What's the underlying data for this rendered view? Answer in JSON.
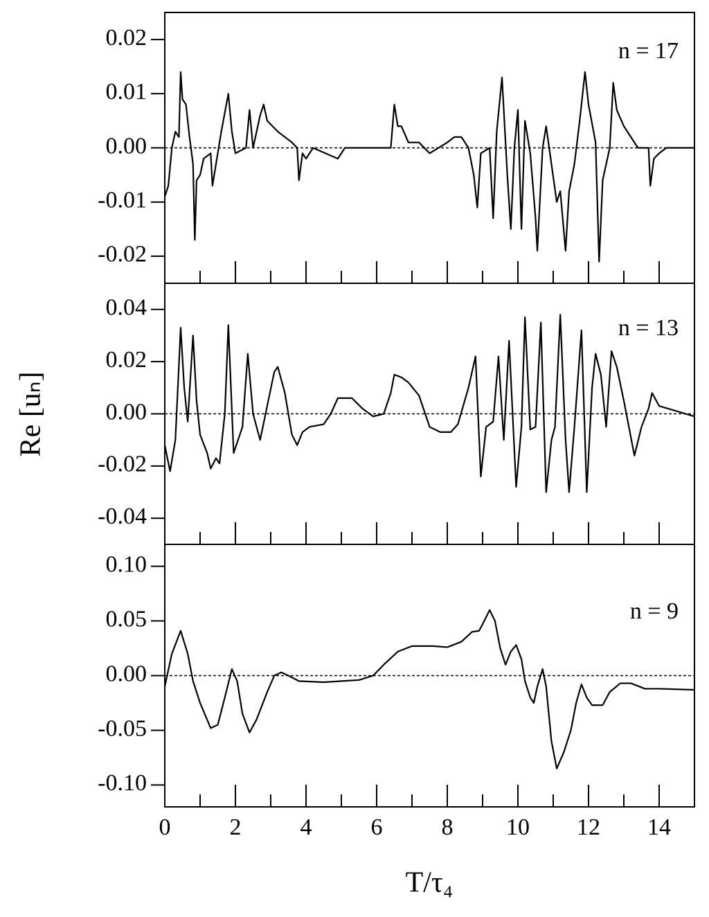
{
  "chart_data": [
    {
      "type": "line",
      "annotation": "n = 17",
      "xlim": [
        0,
        15
      ],
      "ylim": [
        -0.025,
        0.025
      ],
      "hline": 0,
      "yticks": [
        {
          "value": 0.02,
          "label": "0.02"
        },
        {
          "value": 0.01,
          "label": "0.01"
        },
        {
          "value": 0,
          "label": "0.00"
        },
        {
          "value": -0.01,
          "label": "-0.01"
        },
        {
          "value": -0.02,
          "label": "-0.02"
        }
      ],
      "x": [
        0,
        0.1,
        0.2,
        0.3,
        0.4,
        0.45,
        0.5,
        0.6,
        0.7,
        0.8,
        0.85,
        0.9,
        1.0,
        1.1,
        1.3,
        1.35,
        1.45,
        1.6,
        1.8,
        1.9,
        2.0,
        2.3,
        2.4,
        2.5,
        2.7,
        2.8,
        2.9,
        3.2,
        3.6,
        3.75,
        3.8,
        3.9,
        4.0,
        4.2,
        4.9,
        5.1,
        6.4,
        6.5,
        6.6,
        6.7,
        6.9,
        7.2,
        7.5,
        8.0,
        8.2,
        8.4,
        8.6,
        8.75,
        8.85,
        8.95,
        9.2,
        9.3,
        9.4,
        9.55,
        9.7,
        9.8,
        9.9,
        10.0,
        10.1,
        10.2,
        10.35,
        10.5,
        10.55,
        10.7,
        10.8,
        10.95,
        11.1,
        11.2,
        11.35,
        11.45,
        11.6,
        11.75,
        11.9,
        12.0,
        12.2,
        12.3,
        12.4,
        12.6,
        12.7,
        12.8,
        13.0,
        13.2,
        13.4,
        13.7,
        13.75,
        13.85,
        14.0,
        14.2,
        15
      ],
      "series": [
        {
          "color": "#000000",
          "values": [
            -0.009,
            -0.007,
            0.0,
            0.003,
            0.002,
            0.014,
            0.009,
            0.008,
            0.002,
            -0.003,
            -0.017,
            -0.006,
            -0.005,
            -0.002,
            -0.001,
            -0.007,
            -0.003,
            0.003,
            0.01,
            0.003,
            -0.001,
            0.0,
            0.007,
            0.0,
            0.006,
            0.008,
            0.005,
            0.003,
            0.001,
            0.0,
            -0.006,
            -0.001,
            -0.002,
            0.0,
            -0.002,
            0.0,
            0.0,
            0.008,
            0.004,
            0.004,
            0.001,
            0.001,
            -0.001,
            0.001,
            0.002,
            0.002,
            0.0,
            -0.005,
            -0.011,
            -0.001,
            0.0,
            -0.013,
            0.003,
            0.013,
            -0.005,
            -0.015,
            0.0,
            0.007,
            -0.015,
            0.005,
            -0.001,
            -0.013,
            -0.019,
            0.0,
            0.004,
            -0.003,
            -0.01,
            -0.008,
            -0.019,
            -0.008,
            -0.003,
            0.005,
            0.014,
            0.008,
            0.001,
            -0.021,
            -0.006,
            0.0,
            0.012,
            0.007,
            0.004,
            0.002,
            0.0,
            0.0,
            -0.007,
            -0.002,
            -0.001,
            0.0,
            0.0
          ]
        }
      ]
    },
    {
      "type": "line",
      "annotation": "n = 13",
      "ylabel": "Re [uₙ]",
      "xlim": [
        0,
        15
      ],
      "ylim": [
        -0.05,
        0.05
      ],
      "hline": 0,
      "yticks": [
        {
          "value": 0.04,
          "label": "0.04"
        },
        {
          "value": 0.02,
          "label": "0.02"
        },
        {
          "value": 0,
          "label": "0.00"
        },
        {
          "value": -0.02,
          "label": "-0.02"
        },
        {
          "value": -0.04,
          "label": "-0.04"
        }
      ],
      "x": [
        0,
        0.15,
        0.3,
        0.45,
        0.55,
        0.65,
        0.8,
        0.9,
        1.0,
        1.2,
        1.3,
        1.45,
        1.55,
        1.7,
        1.8,
        1.95,
        2.2,
        2.35,
        2.5,
        2.7,
        2.9,
        3.1,
        3.2,
        3.4,
        3.6,
        3.75,
        3.9,
        4.1,
        4.5,
        4.7,
        4.9,
        5.3,
        5.6,
        5.9,
        6.2,
        6.4,
        6.5,
        6.7,
        6.9,
        7.2,
        7.5,
        7.8,
        8.1,
        8.3,
        8.6,
        8.8,
        8.95,
        9.1,
        9.3,
        9.45,
        9.6,
        9.75,
        9.95,
        10.1,
        10.2,
        10.35,
        10.5,
        10.65,
        10.8,
        10.95,
        11.05,
        11.2,
        11.35,
        11.45,
        11.6,
        11.8,
        11.95,
        12.1,
        12.2,
        12.35,
        12.5,
        12.65,
        12.8,
        13.0,
        13.3,
        13.5,
        13.7,
        13.8,
        14.0,
        14.5,
        15
      ],
      "series": [
        {
          "color": "#000000",
          "values": [
            -0.012,
            -0.022,
            -0.01,
            0.033,
            0.01,
            -0.003,
            0.03,
            0.005,
            -0.008,
            -0.015,
            -0.021,
            -0.017,
            -0.019,
            0.0,
            0.034,
            -0.015,
            -0.005,
            0.023,
            0.0,
            -0.01,
            0.003,
            0.016,
            0.018,
            0.008,
            -0.008,
            -0.012,
            -0.007,
            -0.005,
            -0.004,
            0.0,
            0.006,
            0.006,
            0.002,
            -0.001,
            0.0,
            0.008,
            0.015,
            0.014,
            0.012,
            0.007,
            -0.005,
            -0.007,
            -0.007,
            -0.004,
            0.01,
            0.022,
            -0.024,
            -0.005,
            -0.003,
            0.022,
            -0.01,
            0.028,
            -0.028,
            -0.005,
            0.037,
            -0.006,
            -0.005,
            0.035,
            -0.03,
            -0.01,
            -0.005,
            0.038,
            -0.01,
            -0.03,
            -0.005,
            0.032,
            -0.03,
            0.01,
            0.023,
            0.015,
            -0.005,
            0.024,
            0.018,
            0.005,
            -0.016,
            -0.005,
            0.002,
            0.008,
            0.003,
            0.001,
            -0.001
          ]
        }
      ]
    },
    {
      "type": "line",
      "annotation": "n = 9",
      "xlabel": "T/τ₄",
      "xlim": [
        0,
        15
      ],
      "ylim": [
        -0.12,
        0.12
      ],
      "hline": 0,
      "xticks": [
        0,
        2,
        4,
        6,
        8,
        10,
        12,
        14
      ],
      "xminorticks": [
        1,
        3,
        5,
        7,
        9,
        11,
        13,
        15
      ],
      "yticks": [
        {
          "value": 0.1,
          "label": "0.10"
        },
        {
          "value": 0.05,
          "label": "0.05"
        },
        {
          "value": 0,
          "label": "0.00"
        },
        {
          "value": -0.05,
          "label": "-0.05"
        },
        {
          "value": -0.1,
          "label": "-0.10"
        }
      ],
      "x": [
        0,
        0.2,
        0.45,
        0.65,
        0.8,
        1.0,
        1.3,
        1.5,
        1.7,
        1.9,
        2.05,
        2.2,
        2.4,
        2.6,
        2.9,
        3.1,
        3.3,
        3.5,
        3.8,
        4.5,
        5.5,
        5.9,
        6.2,
        6.6,
        7.0,
        7.6,
        8.0,
        8.4,
        8.7,
        8.9,
        9.0,
        9.2,
        9.35,
        9.5,
        9.65,
        9.8,
        9.95,
        10.1,
        10.2,
        10.35,
        10.45,
        10.55,
        10.7,
        10.8,
        10.95,
        11.1,
        11.3,
        11.5,
        11.65,
        11.8,
        11.95,
        12.1,
        12.4,
        12.6,
        12.9,
        13.2,
        13.6,
        14.0,
        15.0
      ],
      "series": [
        {
          "color": "#000000",
          "values": [
            -0.01,
            0.02,
            0.041,
            0.02,
            -0.005,
            -0.025,
            -0.048,
            -0.045,
            -0.02,
            0.006,
            -0.005,
            -0.035,
            -0.052,
            -0.04,
            -0.015,
            0.0,
            0.003,
            0.0,
            -0.005,
            -0.006,
            -0.004,
            0.0,
            0.01,
            0.022,
            0.027,
            0.027,
            0.026,
            0.031,
            0.04,
            0.041,
            0.047,
            0.06,
            0.05,
            0.025,
            0.01,
            0.022,
            0.028,
            0.015,
            -0.005,
            -0.02,
            -0.025,
            -0.01,
            0.006,
            -0.01,
            -0.06,
            -0.085,
            -0.07,
            -0.05,
            -0.025,
            -0.008,
            -0.02,
            -0.027,
            -0.027,
            -0.015,
            -0.007,
            -0.007,
            -0.012,
            -0.012,
            -0.013
          ]
        }
      ]
    }
  ]
}
